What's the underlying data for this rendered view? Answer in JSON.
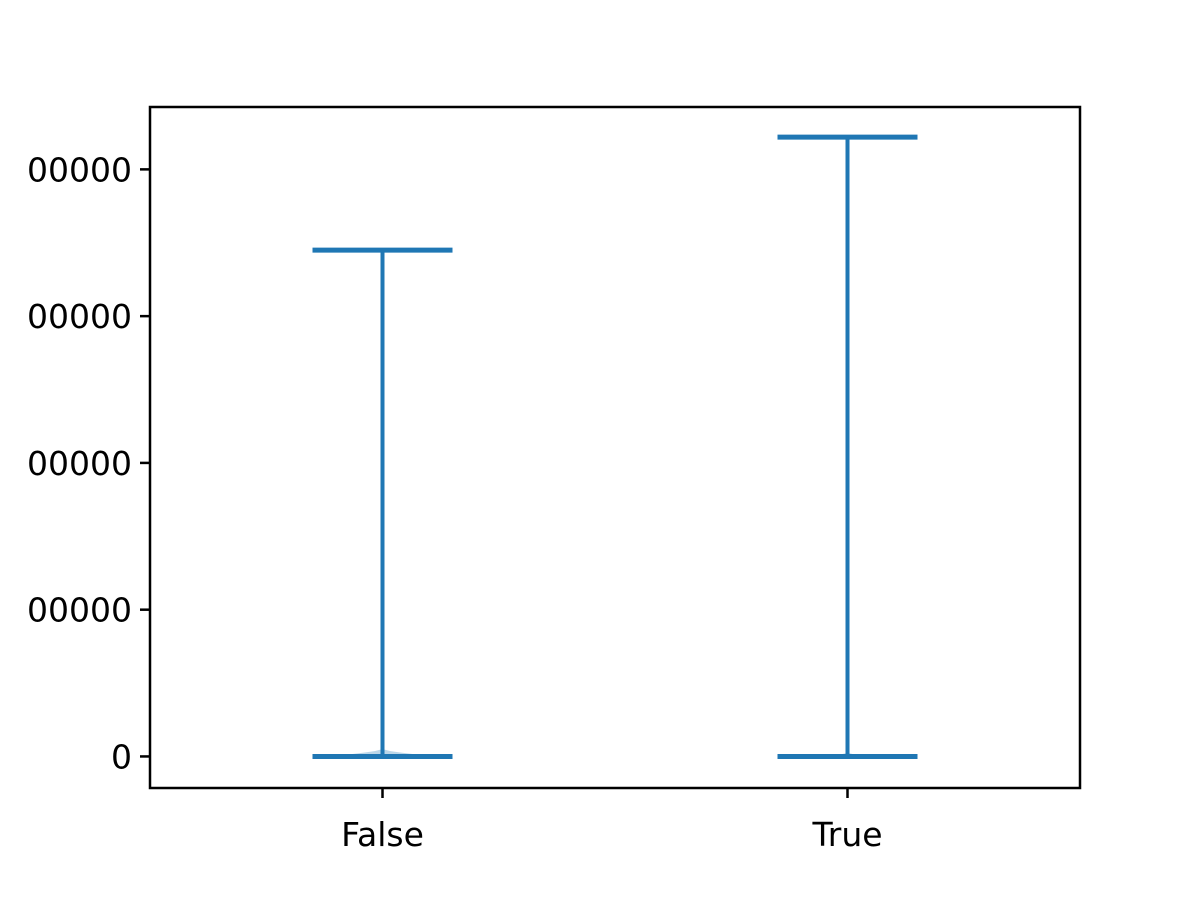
{
  "chart_data": {
    "type": "violin",
    "title": "",
    "xlabel": "",
    "ylabel": "",
    "categories": [
      "False",
      "True"
    ],
    "y_tick_labels": [
      "0",
      "00000",
      "00000",
      "00000",
      "00000"
    ],
    "y_tick_values": [
      0,
      2000000,
      4000000,
      6000000,
      8000000
    ],
    "ylim": [
      -430000,
      8850000
    ],
    "grid": false,
    "legend": "none",
    "series": [
      {
        "category": "False",
        "min": 0,
        "max": 6900000,
        "density_peak_value": 100000,
        "density_peak_halfwidth": 0.12
      },
      {
        "category": "True",
        "min": 0,
        "max": 8440000,
        "density_peak_value": 50000,
        "density_peak_halfwidth": 0.12
      }
    ],
    "colors": {
      "line": "#1f77b4",
      "body": "#1f77b4"
    }
  }
}
